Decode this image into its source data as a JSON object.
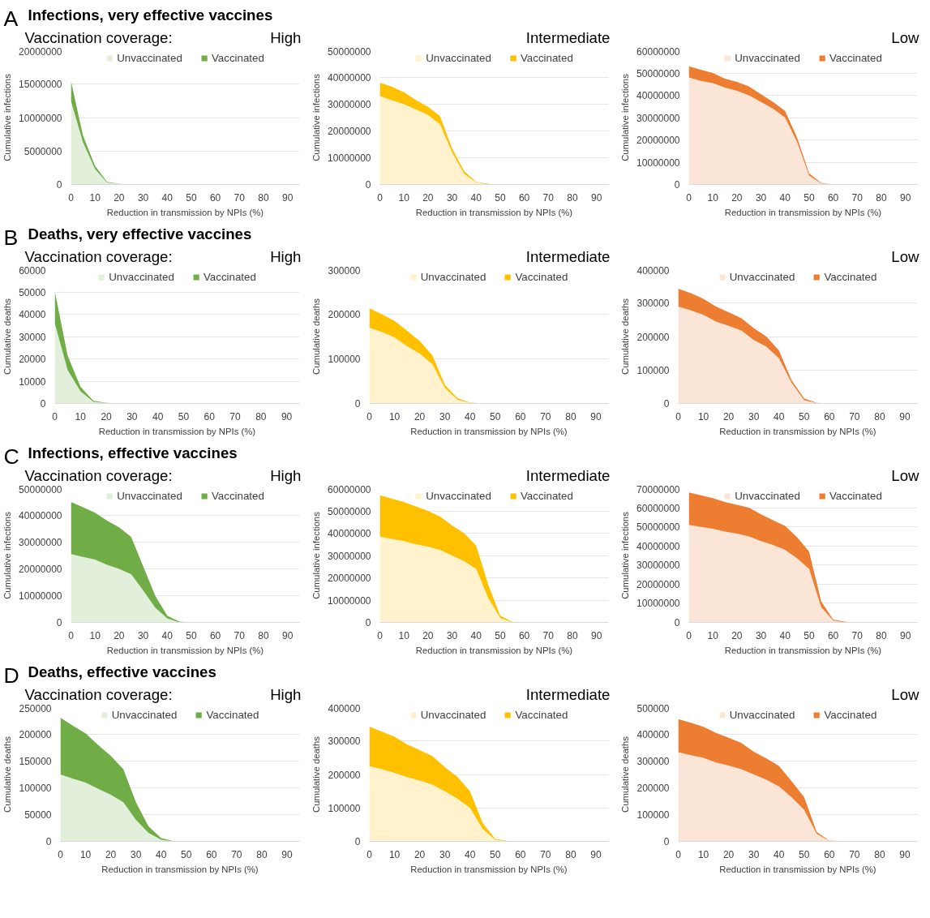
{
  "chart_data": [
    {
      "type": "area",
      "title": "High",
      "annotations": [
        "A",
        "Infections, very effective vaccines",
        "Vaccination coverage:"
      ],
      "xlabel": "Reduction in transmission by NPIs (%)",
      "ylabel": "Cumulative infections",
      "stacked": true,
      "legend": "top",
      "grid": "y",
      "x": [
        0,
        5,
        10,
        15,
        20,
        25,
        30,
        35,
        40,
        45,
        50,
        55,
        60,
        65,
        70,
        75,
        80,
        85,
        90,
        95
      ],
      "xlim": [
        0,
        95
      ],
      "xticks": [
        0,
        10,
        20,
        30,
        40,
        50,
        60,
        70,
        80,
        90
      ],
      "ylim": [
        0,
        20000000
      ],
      "yticks": [
        0,
        5000000,
        10000000,
        15000000,
        20000000
      ],
      "series": [
        {
          "name": "Unvaccinated",
          "color": "#e2efda",
          "values": [
            12500000,
            6300000,
            2300000,
            300000,
            50000,
            0,
            0,
            0,
            0,
            0,
            0,
            0,
            0,
            0,
            0,
            0,
            0,
            0,
            0,
            0
          ]
        },
        {
          "name": "Vaccinated",
          "color": "#70ad47",
          "values": [
            3000000,
            1000000,
            500000,
            100000,
            50000,
            0,
            0,
            0,
            0,
            0,
            0,
            0,
            0,
            0,
            0,
            0,
            0,
            0,
            0,
            0
          ]
        }
      ]
    },
    {
      "type": "area",
      "title": "Intermediate",
      "xlabel": "Reduction in transmission by NPIs (%)",
      "ylabel": "Cumulative infections",
      "stacked": true,
      "legend": "top",
      "grid": "y",
      "x": [
        0,
        5,
        10,
        15,
        20,
        25,
        30,
        35,
        40,
        45,
        50,
        55,
        60,
        65,
        70,
        75,
        80,
        85,
        90,
        95
      ],
      "xlim": [
        0,
        95
      ],
      "xticks": [
        0,
        10,
        20,
        30,
        40,
        50,
        60,
        70,
        80,
        90
      ],
      "ylim": [
        0,
        50000000
      ],
      "yticks": [
        0,
        10000000,
        20000000,
        30000000,
        40000000,
        50000000
      ],
      "series": [
        {
          "name": "Unvaccinated",
          "color": "#fff2cc",
          "values": [
            33000000,
            31500000,
            30000000,
            28000000,
            26000000,
            22500000,
            12000000,
            4000000,
            800000,
            0,
            0,
            0,
            0,
            0,
            0,
            0,
            0,
            0,
            0,
            0
          ]
        },
        {
          "name": "Vaccinated",
          "color": "#ffc000",
          "values": [
            5000000,
            5000000,
            4500000,
            3500000,
            3000000,
            3000000,
            1500000,
            1000000,
            200000,
            200000,
            0,
            0,
            0,
            0,
            0,
            0,
            0,
            0,
            0,
            0
          ]
        }
      ]
    },
    {
      "type": "area",
      "title": "Low",
      "xlabel": "Reduction in transmission by NPIs (%)",
      "ylabel": "Cumulative infections",
      "stacked": true,
      "legend": "top",
      "grid": "y",
      "x": [
        0,
        5,
        10,
        15,
        20,
        25,
        30,
        35,
        40,
        45,
        50,
        55,
        60,
        65,
        70,
        75,
        80,
        85,
        90,
        95
      ],
      "xlim": [
        0,
        95
      ],
      "xticks": [
        0,
        10,
        20,
        30,
        40,
        50,
        60,
        70,
        80,
        90
      ],
      "ylim": [
        0,
        60000000
      ],
      "yticks": [
        0,
        10000000,
        20000000,
        30000000,
        40000000,
        50000000,
        60000000
      ],
      "series": [
        {
          "name": "Unvaccinated",
          "color": "#fbe5d6",
          "values": [
            48000000,
            46500000,
            45500000,
            43500000,
            42000000,
            40000000,
            37000000,
            34000000,
            30000000,
            19000000,
            4000000,
            500000,
            0,
            0,
            0,
            0,
            0,
            0,
            0,
            0
          ]
        },
        {
          "name": "Vaccinated",
          "color": "#ed7d31",
          "values": [
            5000000,
            5000000,
            4500000,
            4000000,
            4000000,
            4000000,
            3500000,
            3000000,
            3000000,
            2000000,
            1000000,
            200000,
            0,
            0,
            0,
            0,
            0,
            0,
            0,
            0
          ]
        }
      ]
    },
    {
      "type": "area",
      "title": "High",
      "annotations": [
        "B",
        "Deaths, very effective vaccines",
        "Vaccination coverage:"
      ],
      "xlabel": "Reduction in transmission by NPIs (%)",
      "ylabel": "Cumulative deaths",
      "stacked": true,
      "legend": "top",
      "grid": "y",
      "x": [
        0,
        5,
        10,
        15,
        20,
        25,
        30,
        35,
        40,
        45,
        50,
        55,
        60,
        65,
        70,
        75,
        80,
        85,
        90,
        95
      ],
      "xlim": [
        0,
        95
      ],
      "xticks": [
        0,
        10,
        20,
        30,
        40,
        50,
        60,
        70,
        80,
        90
      ],
      "ylim": [
        0,
        60000
      ],
      "yticks": [
        0,
        10000,
        20000,
        30000,
        40000,
        50000,
        60000
      ],
      "series": [
        {
          "name": "Unvaccinated",
          "color": "#e2efda",
          "values": [
            36000,
            15000,
            5500,
            700,
            200,
            0,
            0,
            0,
            0,
            0,
            0,
            0,
            0,
            0,
            0,
            0,
            0,
            0,
            0,
            0
          ]
        },
        {
          "name": "Vaccinated",
          "color": "#70ad47",
          "values": [
            14500,
            6500,
            2000,
            500,
            100,
            0,
            0,
            0,
            0,
            0,
            0,
            0,
            0,
            0,
            0,
            0,
            0,
            0,
            0,
            0
          ]
        }
      ]
    },
    {
      "type": "area",
      "title": "Intermediate",
      "xlabel": "Reduction in transmission by NPIs (%)",
      "ylabel": "Cumulative deaths",
      "stacked": true,
      "legend": "top",
      "grid": "y",
      "x": [
        0,
        5,
        10,
        15,
        20,
        25,
        30,
        35,
        40,
        45,
        50,
        55,
        60,
        65,
        70,
        75,
        80,
        85,
        90,
        95
      ],
      "xlim": [
        0,
        95
      ],
      "xticks": [
        0,
        10,
        20,
        30,
        40,
        50,
        60,
        70,
        80,
        90
      ],
      "ylim": [
        0,
        300000
      ],
      "yticks": [
        0,
        100000,
        200000,
        300000
      ],
      "series": [
        {
          "name": "Unvaccinated",
          "color": "#fff2cc",
          "values": [
            170000,
            160000,
            148000,
            128000,
            112000,
            88000,
            35000,
            8000,
            1000,
            0,
            0,
            0,
            0,
            0,
            0,
            0,
            0,
            0,
            0,
            0
          ]
        },
        {
          "name": "Vaccinated",
          "color": "#ffc000",
          "values": [
            43000,
            40000,
            37000,
            35000,
            28000,
            20000,
            7000,
            4000,
            1000,
            500,
            0,
            0,
            0,
            0,
            0,
            0,
            0,
            0,
            0,
            0
          ]
        }
      ]
    },
    {
      "type": "area",
      "title": "Low",
      "xlabel": "Reduction in transmission by NPIs (%)",
      "ylabel": "Cumulative deaths",
      "stacked": true,
      "legend": "top",
      "grid": "y",
      "x": [
        0,
        5,
        10,
        15,
        20,
        25,
        30,
        35,
        40,
        45,
        50,
        55,
        60,
        65,
        70,
        75,
        80,
        85,
        90,
        95
      ],
      "xlim": [
        0,
        95
      ],
      "xticks": [
        0,
        10,
        20,
        30,
        40,
        50,
        60,
        70,
        80,
        90
      ],
      "ylim": [
        0,
        400000
      ],
      "yticks": [
        0,
        100000,
        200000,
        300000,
        400000
      ],
      "series": [
        {
          "name": "Unvaccinated",
          "color": "#fbe5d6",
          "values": [
            290000,
            278000,
            265000,
            245000,
            232000,
            218000,
            190000,
            170000,
            135000,
            62000,
            10000,
            1000,
            0,
            0,
            0,
            0,
            0,
            0,
            0,
            0
          ]
        },
        {
          "name": "Vaccinated",
          "color": "#ed7d31",
          "values": [
            53000,
            52000,
            48000,
            45000,
            41000,
            37000,
            35000,
            30000,
            23000,
            8000,
            5000,
            1000,
            0,
            0,
            0,
            0,
            0,
            0,
            0,
            0
          ]
        }
      ]
    },
    {
      "type": "area",
      "title": "High",
      "annotations": [
        "C",
        "Infections, effective vaccines",
        "Vaccination coverage:"
      ],
      "xlabel": "Reduction in transmission by NPIs (%)",
      "ylabel": "Cumulative infections",
      "stacked": true,
      "legend": "top",
      "grid": "y",
      "x": [
        0,
        5,
        10,
        15,
        20,
        25,
        30,
        35,
        40,
        45,
        50,
        55,
        60,
        65,
        70,
        75,
        80,
        85,
        90,
        95
      ],
      "xlim": [
        0,
        95
      ],
      "xticks": [
        0,
        10,
        20,
        30,
        40,
        50,
        60,
        70,
        80,
        90
      ],
      "ylim": [
        0,
        50000000
      ],
      "yticks": [
        0,
        10000000,
        20000000,
        30000000,
        40000000,
        50000000
      ],
      "series": [
        {
          "name": "Unvaccinated",
          "color": "#e2efda",
          "values": [
            25500000,
            24500000,
            23500000,
            21500000,
            20000000,
            18000000,
            12000000,
            5500000,
            1500000,
            0,
            0,
            0,
            0,
            0,
            0,
            0,
            0,
            0,
            0,
            0
          ]
        },
        {
          "name": "Vaccinated",
          "color": "#70ad47",
          "values": [
            19500000,
            18500000,
            17500000,
            16500000,
            15500000,
            14000000,
            9000000,
            4500000,
            1000000,
            300000,
            0,
            0,
            0,
            0,
            0,
            0,
            0,
            0,
            0,
            0
          ]
        }
      ]
    },
    {
      "type": "area",
      "title": "Intermediate",
      "xlabel": "Reduction in transmission by NPIs (%)",
      "ylabel": "Cumulative infections",
      "stacked": true,
      "legend": "top",
      "grid": "y",
      "x": [
        0,
        5,
        10,
        15,
        20,
        25,
        30,
        35,
        40,
        45,
        50,
        55,
        60,
        65,
        70,
        75,
        80,
        85,
        90,
        95
      ],
      "xlim": [
        0,
        95
      ],
      "xticks": [
        0,
        10,
        20,
        30,
        40,
        50,
        60,
        70,
        80,
        90
      ],
      "ylim": [
        0,
        60000000
      ],
      "yticks": [
        0,
        10000000,
        20000000,
        30000000,
        40000000,
        50000000,
        60000000
      ],
      "series": [
        {
          "name": "Unvaccinated",
          "color": "#fff2cc",
          "values": [
            38500000,
            37500000,
            36500000,
            35000000,
            34000000,
            32500000,
            30000000,
            27500000,
            24000000,
            11000000,
            2000000,
            0,
            0,
            0,
            0,
            0,
            0,
            0,
            0,
            0
          ]
        },
        {
          "name": "Vaccinated",
          "color": "#ffc000",
          "values": [
            18500000,
            18000000,
            17500000,
            17000000,
            16000000,
            15000000,
            13500000,
            12500000,
            10500000,
            6000000,
            1000000,
            300000,
            0,
            0,
            0,
            0,
            0,
            0,
            0,
            0
          ]
        }
      ]
    },
    {
      "type": "area",
      "title": "Low",
      "xlabel": "Reduction in transmission by NPIs (%)",
      "ylabel": "Cumulative infections",
      "stacked": true,
      "legend": "top",
      "grid": "y",
      "x": [
        0,
        5,
        10,
        15,
        20,
        25,
        30,
        35,
        40,
        45,
        50,
        55,
        60,
        65,
        70,
        75,
        80,
        85,
        90,
        95
      ],
      "xlim": [
        0,
        95
      ],
      "xticks": [
        0,
        10,
        20,
        30,
        40,
        50,
        60,
        70,
        80,
        90
      ],
      "ylim": [
        0,
        70000000
      ],
      "yticks": [
        0,
        10000000,
        20000000,
        30000000,
        40000000,
        50000000,
        60000000,
        70000000
      ],
      "series": [
        {
          "name": "Unvaccinated",
          "color": "#fbe5d6",
          "values": [
            51000000,
            50000000,
            49000000,
            47500000,
            46500000,
            45000000,
            42500000,
            40500000,
            38000000,
            33500000,
            28000000,
            8000000,
            1000000,
            0,
            0,
            0,
            0,
            0,
            0,
            0
          ]
        },
        {
          "name": "Vaccinated",
          "color": "#ed7d31",
          "values": [
            17000000,
            16500000,
            16000000,
            15500000,
            15000000,
            15000000,
            14000000,
            13000000,
            12500000,
            11000000,
            9000000,
            3000000,
            500000,
            300000,
            0,
            0,
            0,
            0,
            0,
            0
          ]
        }
      ]
    },
    {
      "type": "area",
      "title": "High",
      "annotations": [
        "D",
        "Deaths, effective vaccines",
        "Vaccination coverage:"
      ],
      "xlabel": "Reduction in transmission by NPIs (%)",
      "ylabel": "Cumulative deaths",
      "stacked": true,
      "legend": "top",
      "grid": "y",
      "x": [
        0,
        5,
        10,
        15,
        20,
        25,
        30,
        35,
        40,
        45,
        50,
        55,
        60,
        65,
        70,
        75,
        80,
        85,
        90,
        95
      ],
      "xlim": [
        0,
        95
      ],
      "xticks": [
        0,
        10,
        20,
        30,
        40,
        50,
        60,
        70,
        80,
        90
      ],
      "ylim": [
        0,
        250000
      ],
      "yticks": [
        0,
        50000,
        100000,
        150000,
        200000,
        250000
      ],
      "series": [
        {
          "name": "Unvaccinated",
          "color": "#e2efda",
          "values": [
            125000,
            117000,
            110000,
            98000,
            87000,
            73000,
            40000,
            16000,
            3000,
            0,
            0,
            0,
            0,
            0,
            0,
            0,
            0,
            0,
            0,
            0
          ]
        },
        {
          "name": "Vaccinated",
          "color": "#70ad47",
          "values": [
            106000,
            99000,
            92000,
            82000,
            73000,
            62000,
            33000,
            12000,
            3000,
            500,
            0,
            0,
            0,
            0,
            0,
            0,
            0,
            0,
            0,
            0
          ]
        }
      ]
    },
    {
      "type": "area",
      "title": "Intermediate",
      "xlabel": "Reduction in transmission by NPIs (%)",
      "ylabel": "Cumulative deaths",
      "stacked": true,
      "legend": "top",
      "grid": "y",
      "x": [
        0,
        5,
        10,
        15,
        20,
        25,
        30,
        35,
        40,
        45,
        50,
        55,
        60,
        65,
        70,
        75,
        80,
        85,
        90,
        95
      ],
      "xlim": [
        0,
        95
      ],
      "xticks": [
        0,
        10,
        20,
        30,
        40,
        50,
        60,
        70,
        80,
        90
      ],
      "ylim": [
        0,
        400000
      ],
      "yticks": [
        0,
        100000,
        200000,
        300000,
        400000
      ],
      "series": [
        {
          "name": "Unvaccinated",
          "color": "#fff2cc",
          "values": [
            225000,
            216000,
            205000,
            192000,
            182000,
            170000,
            150000,
            128000,
            100000,
            37000,
            5000,
            0,
            0,
            0,
            0,
            0,
            0,
            0,
            0,
            0
          ]
        },
        {
          "name": "Vaccinated",
          "color": "#ffc000",
          "values": [
            118000,
            112000,
            108000,
            98000,
            91000,
            85000,
            72000,
            65000,
            50000,
            18000,
            2000,
            1000,
            0,
            0,
            0,
            0,
            0,
            0,
            0,
            0
          ]
        }
      ]
    },
    {
      "type": "area",
      "title": "Low",
      "xlabel": "Reduction in transmission by NPIs (%)",
      "ylabel": "Cumulative deaths",
      "stacked": true,
      "legend": "top",
      "grid": "y",
      "x": [
        0,
        5,
        10,
        15,
        20,
        25,
        30,
        35,
        40,
        45,
        50,
        55,
        60,
        65,
        70,
        75,
        80,
        85,
        90,
        95
      ],
      "xlim": [
        0,
        95
      ],
      "xticks": [
        0,
        10,
        20,
        30,
        40,
        50,
        60,
        70,
        80,
        90
      ],
      "ylim": [
        0,
        500000
      ],
      "yticks": [
        0,
        100000,
        200000,
        300000,
        400000,
        500000
      ],
      "series": [
        {
          "name": "Unvaccinated",
          "color": "#fbe5d6",
          "values": [
            333000,
            322000,
            312000,
            295000,
            283000,
            270000,
            250000,
            230000,
            205000,
            165000,
            118000,
            28000,
            2000,
            0,
            0,
            0,
            0,
            0,
            0,
            0
          ]
        },
        {
          "name": "Vaccinated",
          "color": "#ed7d31",
          "values": [
            124000,
            121000,
            116000,
            110000,
            104000,
            98000,
            85000,
            80000,
            77000,
            60000,
            47000,
            7000,
            1000,
            500,
            0,
            0,
            0,
            0,
            0,
            0
          ]
        }
      ]
    }
  ]
}
